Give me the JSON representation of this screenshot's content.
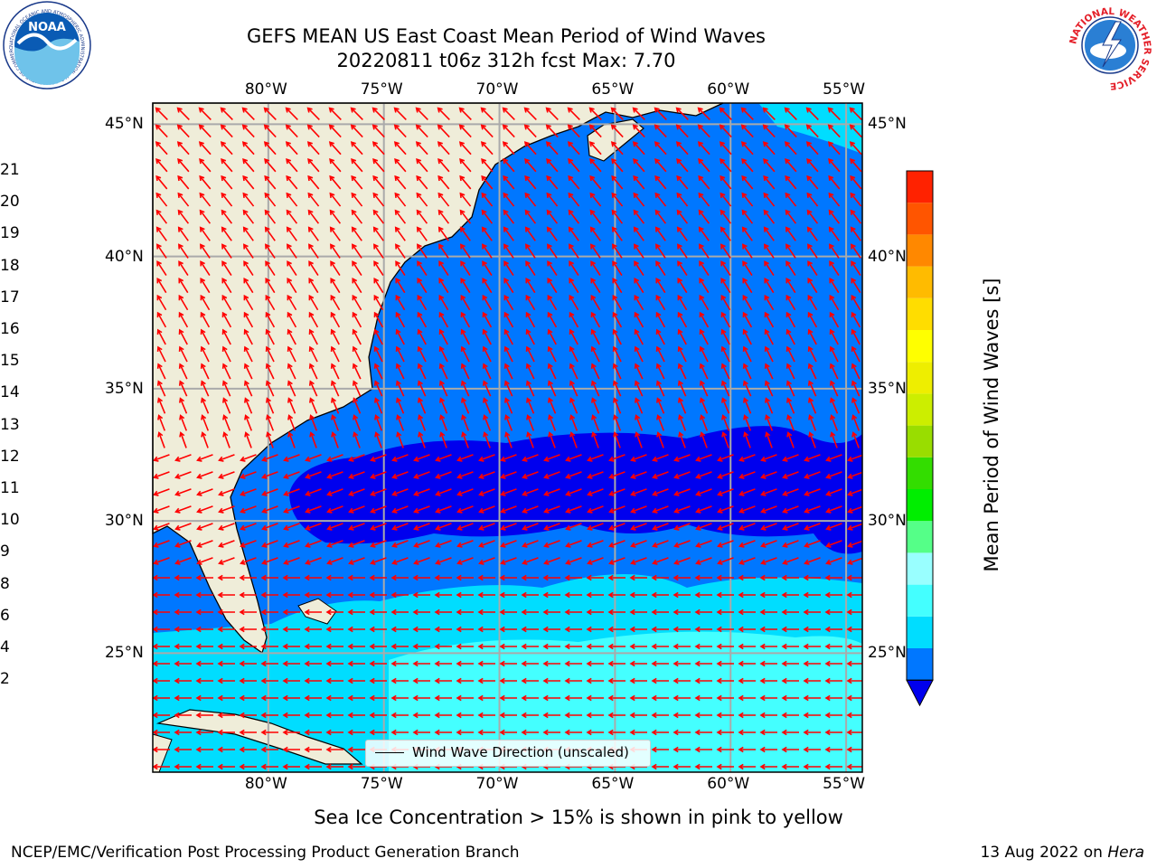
{
  "title": {
    "line1": "GEFS MEAN US East Coast Mean Period of Wind Waves",
    "line2": "20220811 t06z 312h fcst   Max: 7.70"
  },
  "map": {
    "lon_labels": [
      "80°W",
      "75°W",
      "70°W",
      "65°W",
      "60°W",
      "55°W"
    ],
    "lat_labels": [
      "45°N",
      "40°N",
      "35°N",
      "30°N",
      "25°N"
    ],
    "lon_values": [
      -80,
      -75,
      -70,
      -65,
      -60,
      -55
    ],
    "lat_values": [
      45,
      40,
      35,
      30,
      25
    ],
    "extent": {
      "lon_min": -85,
      "lon_max": -54.3,
      "lat_min": 20.5,
      "lat_max": 45.8
    },
    "legend_label": "Wind Wave Direction (unscaled)",
    "arrow_color": "#ff0000",
    "land_color": "#efedd9"
  },
  "colorbar": {
    "title": "Mean Period of Wind Waves [s]",
    "ticks": [
      "2",
      "4",
      "6",
      "8",
      "9",
      "10",
      "11",
      "12",
      "13",
      "14",
      "15",
      "16",
      "17",
      "18",
      "19",
      "20",
      "21"
    ],
    "colors": [
      "#0077ff",
      "#00ddff",
      "#44ffff",
      "#99ffff",
      "#55ff88",
      "#00ee00",
      "#33dd00",
      "#99dd00",
      "#ccee00",
      "#eeee00",
      "#ffff00",
      "#ffdd00",
      "#ffbb00",
      "#ff8800",
      "#ff5500",
      "#ff2200"
    ],
    "extend_color": "#0000ee"
  },
  "footer": {
    "note": "Sea Ice Concentration > 15% is shown in pink to yellow",
    "credit": "NCEP/EMC/Verification Post Processing Product Generation Branch",
    "date": "13 Aug 2022 on ",
    "machine": "Hera"
  },
  "logos": {
    "noaa_text": "NOAA",
    "noaa_ring_text": "NATIONAL OCEANIC AND ATMOSPHERIC ADMINISTRATION · U.S. DEPARTMENT OF COMMERCE",
    "nws_ring_text": "NATIONAL WEATHER SERVICE"
  }
}
